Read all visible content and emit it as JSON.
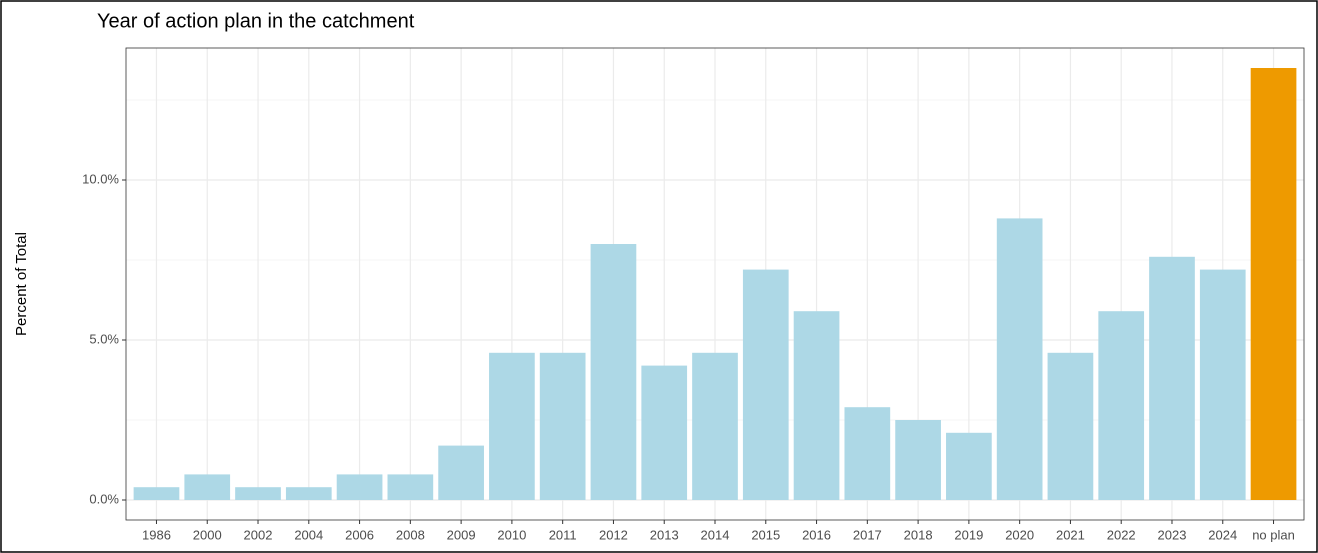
{
  "chart_data": {
    "type": "bar",
    "title": "Year of action plan in the catchment",
    "y_label": "Percent of Total",
    "categories": [
      "1986",
      "2000",
      "2002",
      "2004",
      "2006",
      "2008",
      "2009",
      "2010",
      "2011",
      "2012",
      "2013",
      "2014",
      "2015",
      "2016",
      "2017",
      "2018",
      "2019",
      "2020",
      "2021",
      "2022",
      "2023",
      "2024",
      "no plan"
    ],
    "values": [
      0.4,
      0.8,
      0.4,
      0.4,
      0.8,
      0.8,
      1.7,
      4.6,
      4.6,
      8.0,
      4.2,
      4.6,
      7.2,
      5.9,
      2.9,
      2.5,
      2.1,
      8.8,
      4.6,
      5.9,
      7.6,
      7.2,
      13.5
    ],
    "colors": [
      "#add8e6",
      "#add8e6",
      "#add8e6",
      "#add8e6",
      "#add8e6",
      "#add8e6",
      "#add8e6",
      "#add8e6",
      "#add8e6",
      "#add8e6",
      "#add8e6",
      "#add8e6",
      "#add8e6",
      "#add8e6",
      "#add8e6",
      "#add8e6",
      "#add8e6",
      "#add8e6",
      "#add8e6",
      "#add8e6",
      "#add8e6",
      "#add8e6",
      "#ee9a00"
    ],
    "ylim": [
      -0.625,
      14.125
    ],
    "yticks": [
      {
        "value": 0,
        "label": "0.0%"
      },
      {
        "value": 5,
        "label": "5.0%"
      },
      {
        "value": 10,
        "label": "10.0%"
      }
    ],
    "grid": true
  }
}
